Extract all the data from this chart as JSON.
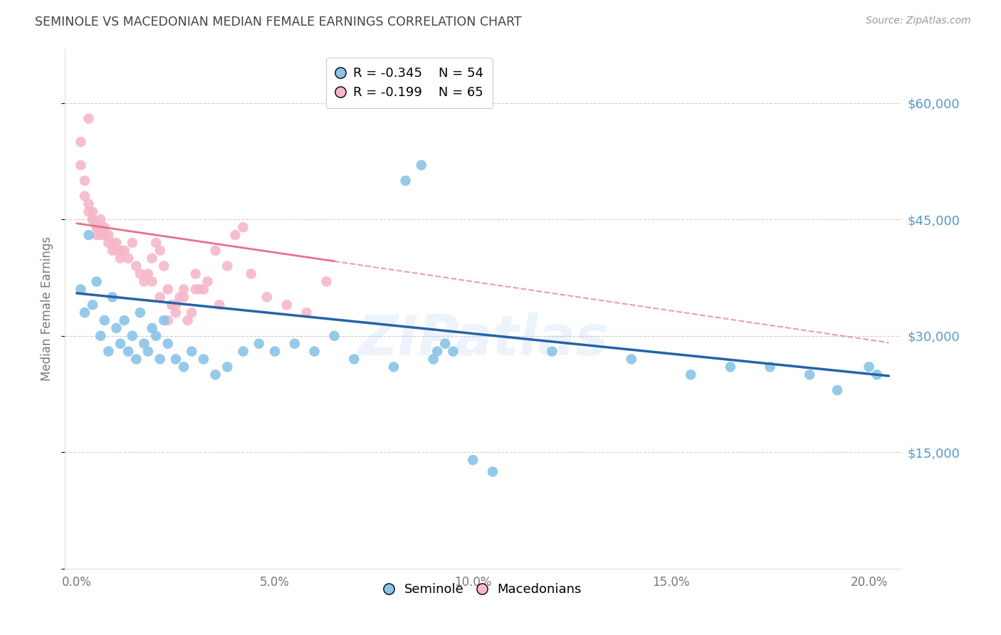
{
  "title": "SEMINOLE VS MACEDONIAN MEDIAN FEMALE EARNINGS CORRELATION CHART",
  "source": "Source: ZipAtlas.com",
  "ylabel": "Median Female Earnings",
  "xlabel_ticks": [
    "0.0%",
    "5.0%",
    "10.0%",
    "15.0%",
    "20.0%"
  ],
  "xlabel_vals": [
    0.0,
    0.05,
    0.1,
    0.15,
    0.2
  ],
  "ytick_vals": [
    0,
    15000,
    30000,
    45000,
    60000
  ],
  "ytick_labels": [
    "",
    "$15,000",
    "$30,000",
    "$45,000",
    "$60,000"
  ],
  "xlim": [
    -0.003,
    0.208
  ],
  "ylim": [
    0,
    67000
  ],
  "watermark": "ZIPatlas",
  "legend_blue_r": "R = -0.345",
  "legend_blue_n": "N = 54",
  "legend_pink_r": "R = -0.199",
  "legend_pink_n": "N = 65",
  "legend_blue_label": "Seminole",
  "legend_pink_label": "Macedonians",
  "blue_color": "#89c4e8",
  "pink_color": "#f5b8c8",
  "blue_line_color": "#2563a8",
  "pink_line_color": "#e8708a",
  "background_color": "#ffffff",
  "grid_color": "#cccccc",
  "title_color": "#444444",
  "right_tick_color": "#5599cc",
  "seminole_x": [
    0.001,
    0.002,
    0.003,
    0.004,
    0.005,
    0.006,
    0.007,
    0.008,
    0.009,
    0.01,
    0.011,
    0.012,
    0.013,
    0.014,
    0.015,
    0.016,
    0.017,
    0.018,
    0.019,
    0.02,
    0.021,
    0.022,
    0.023,
    0.025,
    0.027,
    0.029,
    0.032,
    0.035,
    0.038,
    0.042,
    0.046,
    0.05,
    0.055,
    0.06,
    0.065,
    0.07,
    0.08,
    0.09,
    0.095,
    0.1,
    0.105,
    0.12,
    0.14,
    0.155,
    0.165,
    0.175,
    0.185,
    0.192,
    0.2,
    0.202,
    0.083,
    0.087,
    0.091,
    0.093
  ],
  "seminole_y": [
    36000,
    33000,
    43000,
    34000,
    37000,
    30000,
    32000,
    28000,
    35000,
    31000,
    29000,
    32000,
    28000,
    30000,
    27000,
    33000,
    29000,
    28000,
    31000,
    30000,
    27000,
    32000,
    29000,
    27000,
    26000,
    28000,
    27000,
    25000,
    26000,
    28000,
    29000,
    28000,
    29000,
    28000,
    30000,
    27000,
    26000,
    27000,
    28000,
    14000,
    12500,
    28000,
    27000,
    25000,
    26000,
    26000,
    25000,
    23000,
    26000,
    25000,
    50000,
    52000,
    28000,
    29000
  ],
  "macedonian_x": [
    0.001,
    0.001,
    0.002,
    0.002,
    0.003,
    0.003,
    0.003,
    0.004,
    0.004,
    0.004,
    0.005,
    0.005,
    0.005,
    0.006,
    0.006,
    0.006,
    0.007,
    0.007,
    0.008,
    0.008,
    0.009,
    0.009,
    0.01,
    0.01,
    0.011,
    0.011,
    0.012,
    0.013,
    0.014,
    0.015,
    0.016,
    0.017,
    0.018,
    0.019,
    0.02,
    0.021,
    0.022,
    0.023,
    0.025,
    0.027,
    0.029,
    0.031,
    0.033,
    0.036,
    0.04,
    0.044,
    0.048,
    0.053,
    0.058,
    0.063,
    0.035,
    0.038,
    0.042,
    0.03,
    0.028,
    0.026,
    0.024,
    0.025,
    0.023,
    0.021,
    0.019,
    0.032,
    0.03,
    0.027,
    0.024
  ],
  "macedonian_y": [
    55000,
    52000,
    50000,
    48000,
    47000,
    46000,
    58000,
    45000,
    45000,
    46000,
    44000,
    43000,
    44000,
    44000,
    43000,
    45000,
    43000,
    44000,
    42000,
    43000,
    42000,
    41000,
    41000,
    42000,
    40000,
    41000,
    41000,
    40000,
    42000,
    39000,
    38000,
    37000,
    38000,
    40000,
    42000,
    41000,
    39000,
    36000,
    34000,
    35000,
    33000,
    36000,
    37000,
    34000,
    43000,
    38000,
    35000,
    34000,
    33000,
    37000,
    41000,
    39000,
    44000,
    36000,
    32000,
    35000,
    34000,
    33000,
    32000,
    35000,
    37000,
    36000,
    38000,
    36000,
    34000
  ]
}
